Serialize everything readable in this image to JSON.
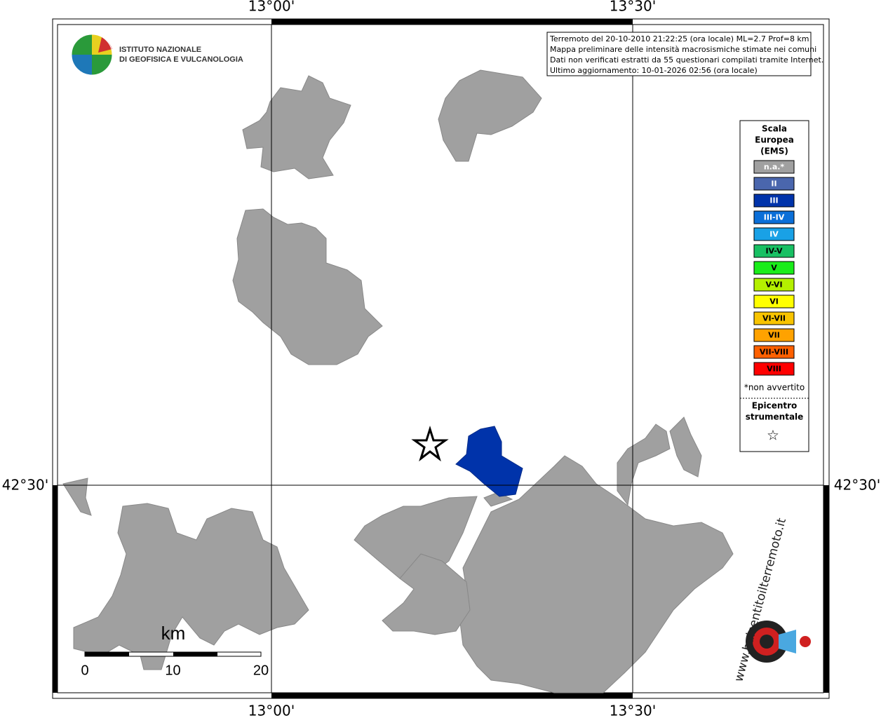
{
  "axis_labels": {
    "top": [
      "13°00'",
      "13°30'"
    ],
    "bottom": [
      "13°00'",
      "13°30'"
    ],
    "left": [
      "42°30'"
    ],
    "right": [
      "42°30'"
    ]
  },
  "logo": {
    "line1": "ISTITUTO NAZIONALE",
    "line2": "DI GEOFISICA E VULCANOLOGIA"
  },
  "info": [
    "Terremoto del 20-10-2010 21:22:25 (ora locale) ML=2.7 Prof=8 km",
    "Mappa preliminare delle intensità macrosismiche stimate nei comuni",
    "Dati non verificati estratti da 55 questionari compilati tramite Internet.",
    "Ultimo aggiornamento: 10-01-2026 02:56 (ora locale)"
  ],
  "legend": {
    "title": [
      "Scala",
      "Europea",
      "(EMS)"
    ],
    "items": [
      {
        "label": "n.a.*",
        "color": "#a0a0a0",
        "text_color": "#ffffff"
      },
      {
        "label": "II",
        "color": "#4a66ad",
        "text_color": "#ffffff"
      },
      {
        "label": "III",
        "color": "#0033aa",
        "text_color": "#ffffff"
      },
      {
        "label": "III-IV",
        "color": "#0b6fd8",
        "text_color": "#ffffff"
      },
      {
        "label": "IV",
        "color": "#19a1e6",
        "text_color": "#ffffff"
      },
      {
        "label": "IV-V",
        "color": "#18c063",
        "text_color": "#000000"
      },
      {
        "label": "V",
        "color": "#1aed1a",
        "text_color": "#000000"
      },
      {
        "label": "V-VI",
        "color": "#b4f000",
        "text_color": "#000000"
      },
      {
        "label": "VI",
        "color": "#ffff00",
        "text_color": "#000000"
      },
      {
        "label": "VI-VII",
        "color": "#f8c400",
        "text_color": "#000000"
      },
      {
        "label": "VII",
        "color": "#ffa200",
        "text_color": "#000000"
      },
      {
        "label": "VII-VIII",
        "color": "#ff6000",
        "text_color": "#000000"
      },
      {
        "label": "VIII",
        "color": "#ff0000",
        "text_color": "#000000"
      }
    ],
    "note": "*non avvertito",
    "epicenter": [
      "Epicentro",
      "strumentale"
    ],
    "epicenter_symbol": "☆"
  },
  "scale_bar": {
    "unit": "km",
    "labels": [
      0,
      10,
      20
    ]
  },
  "watermark": "www.haisentitoilterremoto.it"
}
